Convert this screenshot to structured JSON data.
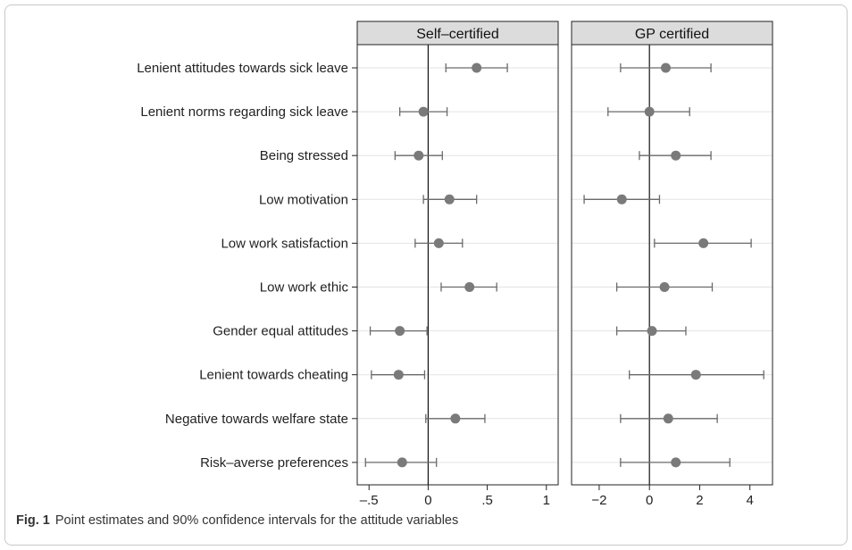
{
  "colors": {
    "marker": "#7a7a7a",
    "error_bar": "#6a6a6a",
    "zero_line": "#111111",
    "row_line": "#e2e2e2",
    "panel_header_bg": "#dcdcdc",
    "panel_border": "#222222",
    "frame_border": "#c8c8c8"
  },
  "chart_data": {
    "type": "scatter",
    "subtype": "coefficient-plot-with-error-bars",
    "categories": [
      "Lenient attitudes towards sick leave",
      "Lenient norms regarding sick leave",
      "Being stressed",
      "Low motivation",
      "Low work satisfaction",
      "Low work ethic",
      "Gender equal attitudes",
      "Lenient towards cheating",
      "Negative towards welfare state",
      "Risk–averse preferences"
    ],
    "panels": [
      {
        "title": "Self–certified",
        "xlim": [
          -0.6,
          1.1
        ],
        "xticks": [
          -0.5,
          0,
          0.5,
          1
        ],
        "xtick_labels": [
          "–.5",
          "0",
          ".5",
          "1"
        ],
        "estimates": [
          0.41,
          -0.04,
          -0.08,
          0.18,
          0.09,
          0.35,
          -0.24,
          -0.25,
          0.23,
          -0.22
        ],
        "ci_low": [
          0.15,
          -0.24,
          -0.28,
          -0.04,
          -0.11,
          0.11,
          -0.49,
          -0.48,
          -0.02,
          -0.53
        ],
        "ci_high": [
          0.67,
          0.16,
          0.12,
          0.41,
          0.29,
          0.58,
          -0.01,
          -0.03,
          0.48,
          0.07
        ]
      },
      {
        "title": "GP certified",
        "xlim": [
          -3.1,
          4.9
        ],
        "xticks": [
          -2,
          0,
          2,
          4
        ],
        "xtick_labels": [
          "−2",
          "0",
          "2",
          "4"
        ],
        "estimates": [
          0.65,
          0.0,
          1.05,
          -1.1,
          2.15,
          0.6,
          0.1,
          1.85,
          0.75,
          1.05
        ],
        "ci_low": [
          -1.15,
          -1.65,
          -0.4,
          -2.6,
          0.2,
          -1.3,
          -1.3,
          -0.8,
          -1.15,
          -1.15
        ],
        "ci_high": [
          2.45,
          1.6,
          2.45,
          0.4,
          4.05,
          2.5,
          1.45,
          4.55,
          2.7,
          3.2
        ]
      }
    ],
    "grid": false,
    "legend": "none"
  },
  "caption": {
    "label": "Fig. 1",
    "text": "Point estimates and 90% confidence intervals for the attitude variables"
  }
}
